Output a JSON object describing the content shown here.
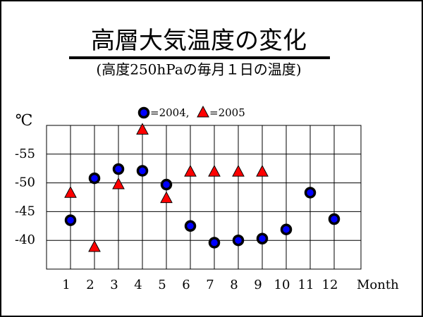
{
  "chart_data": {
    "type": "scatter",
    "title": "高層大気温度の変化",
    "subtitle": "(高度250hPaの毎月１日の温度)",
    "y_label": "℃",
    "x_label": "Month",
    "categories": [
      "1",
      "2",
      "3",
      "4",
      "5",
      "6",
      "7",
      "8",
      "9",
      "10",
      "11",
      "12"
    ],
    "series": [
      {
        "name": "=2004,",
        "marker": "circle",
        "color": "#0000ff",
        "values": [
          -43.5,
          -50.8,
          -52.4,
          -52.1,
          -49.7,
          -42.5,
          -39.6,
          -40.0,
          -40.3,
          -41.9,
          -48.3,
          -43.7
        ]
      },
      {
        "name": "=2005",
        "marker": "triangle",
        "color": "#ff0000",
        "values": [
          -48.2,
          -38.8,
          -49.7,
          -59.2,
          -47.3,
          -51.9,
          -51.9,
          -51.9,
          -51.9,
          null,
          null,
          null
        ]
      }
    ],
    "ylim": [
      -60,
      -35
    ],
    "y_inverted": true,
    "yticks": [
      -55,
      -50,
      -45,
      -40
    ],
    "grid": true
  }
}
